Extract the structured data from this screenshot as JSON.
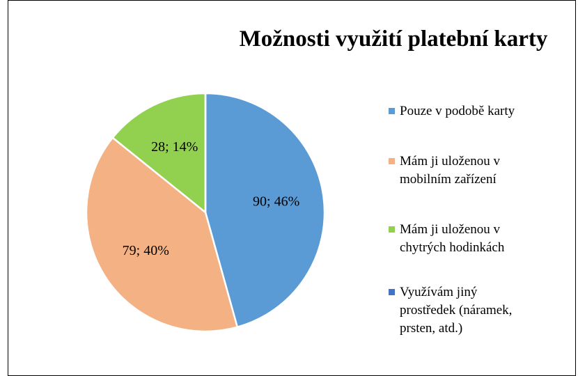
{
  "chart_data": {
    "type": "pie",
    "title": "Možnosti využití platební karty",
    "categories": [
      "Pouze v podobě karty",
      "Mám ji uloženou v mobilním zařízení",
      "Mám ji uloženou v chytrých hodinkách",
      "Využívám jiný prostředek (náramek, prsten, atd.)"
    ],
    "values": [
      90,
      79,
      28,
      0
    ],
    "value_labels": [
      "90; 46%",
      "79; 40%",
      "28; 14%",
      null
    ],
    "colors": [
      "#5b9bd5",
      "#f4b183",
      "#92d050",
      "#4472c4"
    ],
    "legend": "right"
  }
}
